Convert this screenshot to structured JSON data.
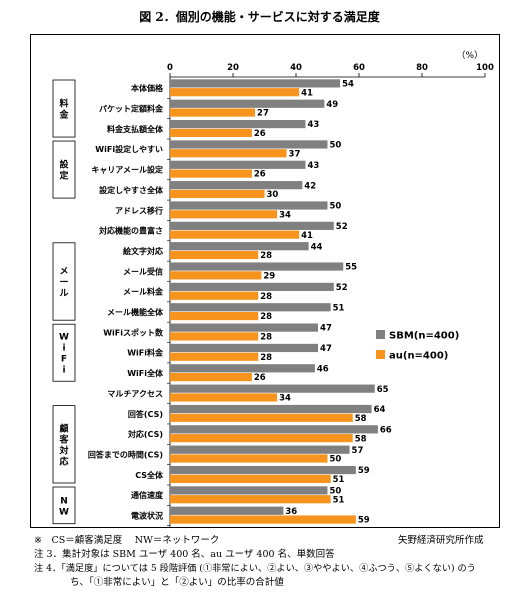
{
  "title": "図 2．個別の機能・サービスに対する満足度",
  "unit_label": "（%）",
  "colors": {
    "sbm": "#808080",
    "au": "#f7941d"
  },
  "chart_data": {
    "type": "bar",
    "orientation": "horizontal",
    "xlim": [
      0,
      100
    ],
    "xticks": [
      "0",
      "20",
      "40",
      "60",
      "80",
      "100"
    ],
    "grid": false,
    "legend_position": "right",
    "groups": [
      {
        "name": "料金",
        "label": "料\n金"
      },
      {
        "name": "設定",
        "label": "設\n定"
      },
      {
        "name": "メール",
        "label": "メ\nー\nル"
      },
      {
        "name": "WiFi",
        "label": "W\ni\nF\ni"
      },
      {
        "name": "顧客対応",
        "label": "顧\n客\n対\n応"
      },
      {
        "name": "NW",
        "label": "N\nW"
      }
    ],
    "categories": [
      {
        "label": "本体価格",
        "group": "料金"
      },
      {
        "label": "パケット定額料金",
        "group": "料金"
      },
      {
        "label": "料金支払額全体",
        "group": "料金"
      },
      {
        "label": "WiFi設定しやすい",
        "group": "設定"
      },
      {
        "label": "キャリアメール設定",
        "group": "設定"
      },
      {
        "label": "設定しやすさ全体",
        "group": "設定"
      },
      {
        "label": "アドレス移行",
        "group": null
      },
      {
        "label": "対応機能の豊富さ",
        "group": null
      },
      {
        "label": "絵文字対応",
        "group": "メール"
      },
      {
        "label": "メール受信",
        "group": "メール"
      },
      {
        "label": "メール料金",
        "group": "メール"
      },
      {
        "label": "メール機能全体",
        "group": "メール"
      },
      {
        "label": "WiFiスポット数",
        "group": "WiFi"
      },
      {
        "label": "WiFi料金",
        "group": "WiFi"
      },
      {
        "label": "WiFi全体",
        "group": "WiFi"
      },
      {
        "label": "マルチアクセス",
        "group": null
      },
      {
        "label": "回答(CS)",
        "group": "顧客対応"
      },
      {
        "label": "対応(CS)",
        "group": "顧客対応"
      },
      {
        "label": "回答までの時間(CS)",
        "group": "顧客対応"
      },
      {
        "label": "CS全体",
        "group": "顧客対応"
      },
      {
        "label": "通信速度",
        "group": "NW"
      },
      {
        "label": "電波状況",
        "group": "NW"
      }
    ],
    "series": [
      {
        "name": "SBM(n=400)",
        "color": "#808080",
        "values": [
          54,
          49,
          43,
          50,
          43,
          42,
          50,
          52,
          44,
          55,
          52,
          51,
          47,
          47,
          46,
          65,
          64,
          66,
          57,
          59,
          50,
          36
        ]
      },
      {
        "name": "au(n=400)",
        "color": "#f7941d",
        "values": [
          41,
          27,
          26,
          37,
          26,
          30,
          34,
          41,
          28,
          29,
          28,
          28,
          28,
          28,
          26,
          34,
          58,
          58,
          50,
          51,
          51,
          59
        ]
      }
    ]
  },
  "notes": {
    "line1_left": "※　CS＝顧客満足度　 NW＝ネットワーク",
    "line1_right": "矢野経済研究所作成",
    "line2": "注 3．集計対象は SBM ユーザ 400 名、au ユーザ 400 名、単数回答",
    "line3": "注 4．「満足度」については 5 段階評価 (①非常によい、②よい、③ややよい、④ふつう、⑤よくない) のう",
    "line4": "ち、「①非常によい」と「②よい」の比率の合計値"
  }
}
